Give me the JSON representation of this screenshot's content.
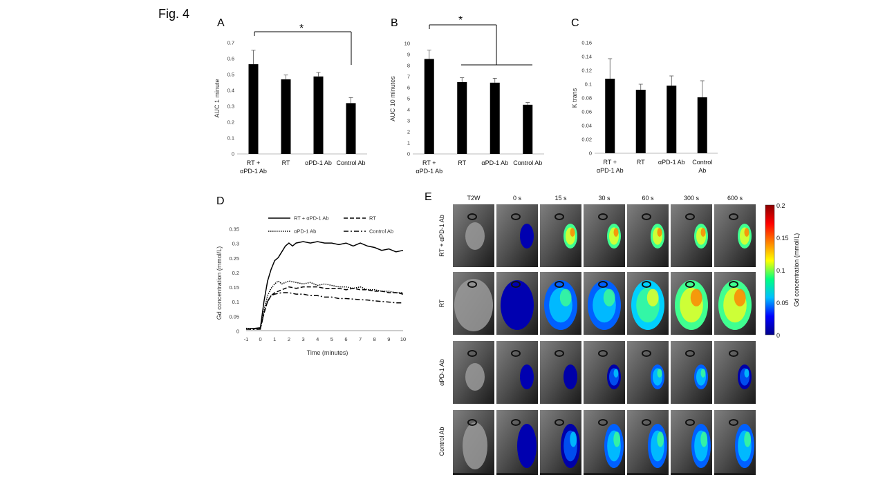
{
  "figure": {
    "title": "Fig. 4"
  },
  "panels": {
    "A": "A",
    "B": "B",
    "C": "C",
    "D": "D",
    "E": "E"
  },
  "significance": "*",
  "chart_data": [
    {
      "id": "A",
      "type": "bar",
      "categories": [
        "RT + αPD-1 Ab",
        "RT",
        "αPD-1 Ab",
        "Control Ab"
      ],
      "values": [
        0.565,
        0.47,
        0.488,
        0.32
      ],
      "errors": [
        0.088,
        0.027,
        0.025,
        0.035
      ],
      "ylabel": "AUC 1 minute",
      "ylim": [
        0,
        0.7
      ],
      "yticks": [
        0,
        0.1,
        0.2,
        0.3,
        0.4,
        0.5,
        0.6,
        0.7
      ],
      "yticklabels": [
        "0",
        "0.1",
        "0.2",
        "0.3",
        "0.4",
        "0.5",
        "0.6",
        "0.7"
      ]
    },
    {
      "id": "B",
      "type": "bar",
      "categories": [
        "RT + αPD-1 Ab",
        "RT",
        "αPD-1 Ab",
        "Control Ab"
      ],
      "values": [
        8.6,
        6.5,
        6.45,
        4.45
      ],
      "errors": [
        0.8,
        0.4,
        0.4,
        0.2
      ],
      "ylabel": "AUC 10 minutes",
      "ylim": [
        0,
        10
      ],
      "yticks": [
        0,
        1,
        2,
        3,
        4,
        5,
        6,
        7,
        8,
        9,
        10
      ],
      "yticklabels": [
        "0",
        "1",
        "2",
        "3",
        "4",
        "5",
        "6",
        "7",
        "8",
        "9",
        "10"
      ]
    },
    {
      "id": "C",
      "type": "bar",
      "categories": [
        "RT + αPD-1 Ab",
        "RT",
        "αPD-1 Ab",
        "Control Ab"
      ],
      "values": [
        0.108,
        0.092,
        0.098,
        0.081
      ],
      "errors": [
        0.029,
        0.008,
        0.014,
        0.024
      ],
      "ylabel": "K trans",
      "ylim": [
        0,
        0.16
      ],
      "yticks": [
        0,
        0.02,
        0.04,
        0.06,
        0.08,
        0.1,
        0.12,
        0.14,
        0.16
      ],
      "yticklabels": [
        "0",
        "0.02",
        "0.04",
        "0.06",
        "0.08",
        "0.1",
        "0.12",
        "0.14",
        "0.16"
      ]
    },
    {
      "id": "D",
      "type": "line",
      "xlabel": "Time (minutes)",
      "ylabel": "Gd concentration (mmol/L)",
      "xlim": [
        -1,
        10
      ],
      "ylim": [
        0,
        0.35
      ],
      "xticks": [
        -1,
        0,
        1,
        2,
        3,
        4,
        5,
        6,
        7,
        8,
        9,
        10
      ],
      "xticklabels": [
        "-1",
        "0",
        "1",
        "2",
        "3",
        "4",
        "5",
        "6",
        "7",
        "8",
        "9",
        "10"
      ],
      "yticks": [
        0,
        0.05,
        0.1,
        0.15,
        0.2,
        0.25,
        0.3,
        0.35
      ],
      "yticklabels": [
        "0",
        "0.05",
        "0.1",
        "0.15",
        "0.2",
        "0.25",
        "0.3",
        "0.35"
      ],
      "series": [
        {
          "name": "RT + αPD-1 Ab",
          "style": "solid",
          "x": [
            -1,
            -0.5,
            0,
            0.25,
            0.5,
            0.75,
            1,
            1.25,
            1.5,
            1.75,
            2,
            2.25,
            2.5,
            3,
            3.5,
            4,
            4.5,
            5,
            5.5,
            6,
            6.5,
            7,
            7.5,
            8,
            8.5,
            9,
            9.5,
            10
          ],
          "y": [
            0.005,
            0.007,
            0.01,
            0.1,
            0.17,
            0.21,
            0.24,
            0.25,
            0.27,
            0.29,
            0.3,
            0.29,
            0.3,
            0.305,
            0.3,
            0.305,
            0.3,
            0.3,
            0.295,
            0.3,
            0.29,
            0.3,
            0.29,
            0.285,
            0.275,
            0.28,
            0.27,
            0.275
          ]
        },
        {
          "name": "RT",
          "style": "dashed",
          "x": [
            -1,
            -0.5,
            0,
            0.25,
            0.5,
            0.75,
            1,
            1.25,
            1.5,
            1.75,
            2,
            2.5,
            3,
            3.5,
            4,
            4.5,
            5,
            5.5,
            6,
            6.5,
            7,
            7.5,
            8,
            8.5,
            9,
            9.5,
            10
          ],
          "y": [
            0.006,
            0.006,
            0.008,
            0.06,
            0.1,
            0.12,
            0.13,
            0.135,
            0.14,
            0.145,
            0.15,
            0.145,
            0.15,
            0.15,
            0.15,
            0.145,
            0.145,
            0.145,
            0.14,
            0.145,
            0.14,
            0.14,
            0.135,
            0.135,
            0.13,
            0.13,
            0.125
          ]
        },
        {
          "name": "αPD-1 Ab",
          "style": "dotted",
          "x": [
            -1,
            -0.5,
            0,
            0.25,
            0.5,
            0.75,
            1,
            1.25,
            1.5,
            1.75,
            2,
            2.5,
            3,
            3.5,
            4,
            4.5,
            5,
            5.5,
            6,
            6.5,
            7,
            7.5,
            8,
            8.5,
            9,
            9.5,
            10
          ],
          "y": [
            0.008,
            0.007,
            0.008,
            0.07,
            0.12,
            0.145,
            0.16,
            0.17,
            0.16,
            0.165,
            0.17,
            0.165,
            0.16,
            0.165,
            0.155,
            0.16,
            0.155,
            0.15,
            0.15,
            0.145,
            0.15,
            0.14,
            0.14,
            0.135,
            0.135,
            0.13,
            0.13
          ]
        },
        {
          "name": "Control Ab",
          "style": "dashdot",
          "x": [
            -1,
            -0.5,
            0,
            0.25,
            0.5,
            0.75,
            1,
            1.5,
            2,
            2.5,
            3,
            3.5,
            4,
            4.5,
            5,
            5.5,
            6,
            6.5,
            7,
            7.5,
            8,
            8.5,
            9,
            9.5,
            10
          ],
          "y": [
            0.005,
            0.004,
            0.005,
            0.06,
            0.1,
            0.12,
            0.125,
            0.13,
            0.13,
            0.125,
            0.125,
            0.12,
            0.12,
            0.115,
            0.115,
            0.11,
            0.11,
            0.108,
            0.106,
            0.105,
            0.102,
            0.1,
            0.098,
            0.095,
            0.095
          ]
        }
      ]
    }
  ],
  "mri_grid": {
    "timepoints": [
      "T2W",
      "0 s",
      "15 s",
      "30 s",
      "60 s",
      "300 s",
      "600 s"
    ],
    "rows": [
      {
        "label": "RT + αPD-1 Ab",
        "levels": [
          0,
          0.02,
          0.75,
          0.8,
          0.85,
          0.85,
          0.8
        ]
      },
      {
        "label": "RT",
        "levels": [
          0,
          0.02,
          0.45,
          0.55,
          0.7,
          0.75,
          0.8
        ]
      },
      {
        "label": "αPD-1 Ab",
        "levels": [
          0,
          0.02,
          0.08,
          0.35,
          0.45,
          0.45,
          0.4
        ]
      },
      {
        "label": "Control Ab",
        "levels": [
          0,
          0.02,
          0.35,
          0.5,
          0.55,
          0.55,
          0.5
        ]
      }
    ],
    "colorbar": {
      "label": "Gd concentration (mmol/L)",
      "ticks": [
        0,
        0.05,
        0.1,
        0.15,
        0.2
      ],
      "ticklabels": [
        "0",
        "0.05",
        "0.1",
        "0.15",
        "0.2"
      ],
      "colors": [
        "#00008b",
        "#0000ff",
        "#00bfff",
        "#00ff80",
        "#ffff00",
        "#ff8000",
        "#ff0000",
        "#8b0000"
      ]
    }
  }
}
